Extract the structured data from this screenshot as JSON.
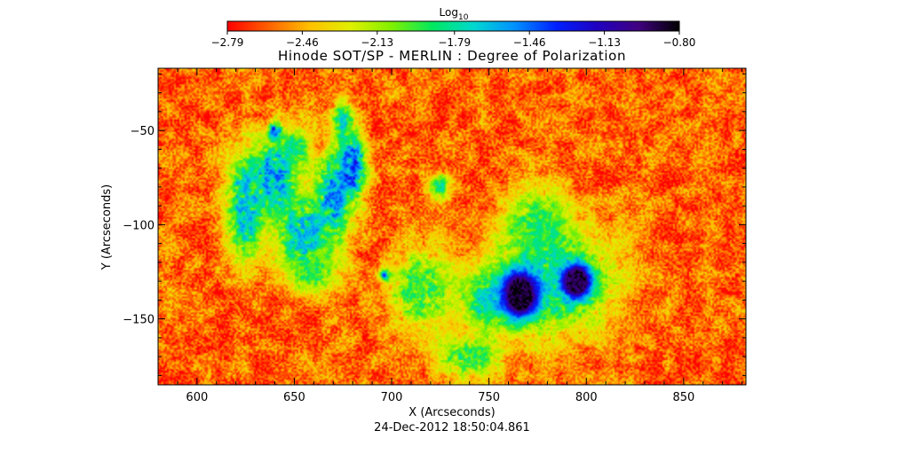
{
  "chart_data": {
    "type": "heatmap",
    "title": "Hinode SOT/SP - MERLIN : Degree of Polarization",
    "xlabel": "X (Arcseconds)",
    "ylabel": "Y (Arcseconds)",
    "date": "24-Dec-2012 18:50:04.861",
    "xlim": [
      580,
      882
    ],
    "ylim": [
      -185,
      -17
    ],
    "x_ticks": [
      600,
      650,
      700,
      750,
      800,
      850
    ],
    "y_ticks": [
      -50,
      -100,
      -150
    ],
    "x_tick_labels": [
      "600",
      "650",
      "700",
      "750",
      "800",
      "850"
    ],
    "y_tick_labels": [
      "−50",
      "−100",
      "−150"
    ],
    "colorbar": {
      "label_base": "Log",
      "label_sub": "10",
      "range": [
        -2.79,
        -0.8
      ],
      "tick_values": [
        -2.79,
        -2.46,
        -2.13,
        -1.79,
        -1.46,
        -1.13,
        -0.8
      ],
      "tick_labels": [
        "−2.79",
        "−2.46",
        "−2.13",
        "−1.79",
        "−1.46",
        "−1.13",
        "−0.80"
      ],
      "colormap": [
        "#ff0000",
        "#ff6000",
        "#ffc000",
        "#e0f000",
        "#80f000",
        "#00e860",
        "#00d8d0",
        "#0090ff",
        "#0020ff",
        "#2000c0",
        "#400080",
        "#000000"
      ]
    },
    "background_level": -2.6,
    "features": [
      {
        "kind": "plage",
        "x": 625,
        "y": -90,
        "sx": 7,
        "sy": 20,
        "level": -1.6
      },
      {
        "kind": "plage",
        "x": 640,
        "y": -75,
        "sx": 8,
        "sy": 15,
        "level": -1.5
      },
      {
        "kind": "plage",
        "x": 655,
        "y": -105,
        "sx": 10,
        "sy": 14,
        "level": -1.6
      },
      {
        "kind": "plage",
        "x": 650,
        "y": -60,
        "sx": 6,
        "sy": 8,
        "level": -1.8
      },
      {
        "kind": "plage",
        "x": 670,
        "y": -85,
        "sx": 6,
        "sy": 18,
        "level": -1.5
      },
      {
        "kind": "plage",
        "x": 680,
        "y": -70,
        "sx": 5,
        "sy": 12,
        "level": -1.3
      },
      {
        "kind": "plage",
        "x": 675,
        "y": -45,
        "sx": 4,
        "sy": 8,
        "level": -1.7
      },
      {
        "kind": "plage",
        "x": 660,
        "y": -125,
        "sx": 9,
        "sy": 8,
        "level": -1.9
      },
      {
        "kind": "plage",
        "x": 715,
        "y": -135,
        "sx": 12,
        "sy": 15,
        "level": -1.9
      },
      {
        "kind": "plage",
        "x": 740,
        "y": -170,
        "sx": 12,
        "sy": 8,
        "level": -1.9
      },
      {
        "kind": "plage",
        "x": 725,
        "y": -80,
        "sx": 4,
        "sy": 5,
        "level": -1.8
      },
      {
        "kind": "plage",
        "x": 775,
        "y": -100,
        "sx": 12,
        "sy": 14,
        "level": -1.9
      },
      {
        "kind": "plage",
        "x": 750,
        "y": -140,
        "sx": 10,
        "sy": 10,
        "level": -1.7
      },
      {
        "kind": "penumbra",
        "x": 782,
        "y": -130,
        "sx": 24,
        "sy": 20,
        "level": -1.75
      },
      {
        "kind": "umbra",
        "x": 766,
        "y": -137,
        "sx": 6,
        "sy": 8,
        "level": -0.85
      },
      {
        "kind": "umbra",
        "x": 795,
        "y": -130,
        "sx": 5,
        "sy": 6,
        "level": -0.9
      },
      {
        "kind": "pore",
        "x": 640,
        "y": -50,
        "sx": 2,
        "sy": 3,
        "level": -1.2
      },
      {
        "kind": "pore",
        "x": 697,
        "y": -127,
        "sx": 2,
        "sy": 2,
        "level": -1.4
      }
    ]
  }
}
